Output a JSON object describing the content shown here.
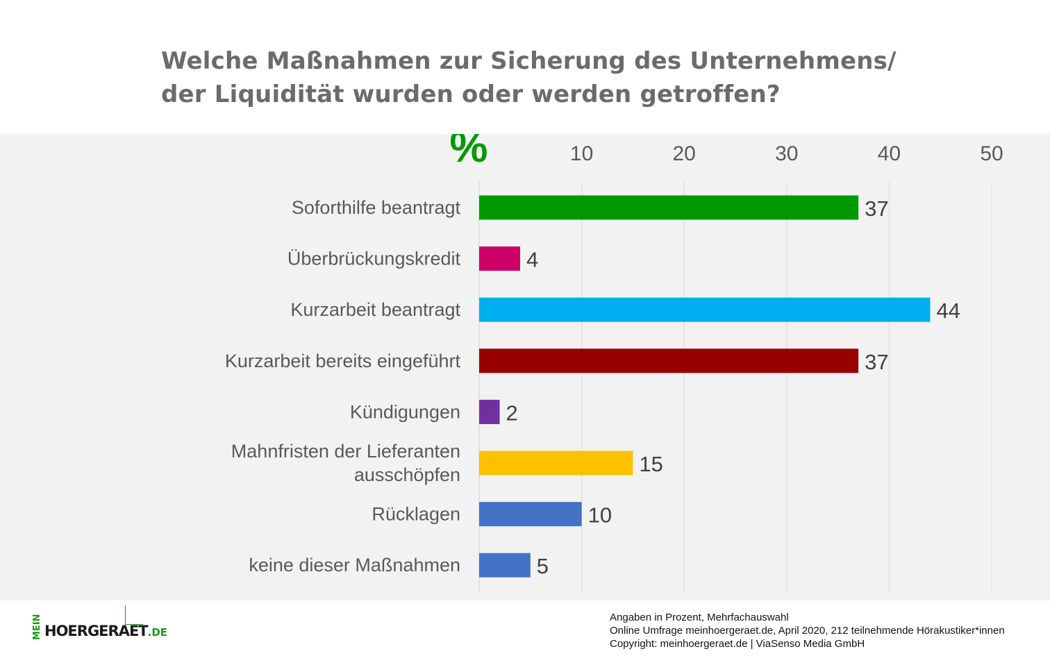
{
  "header": {
    "title_line1": "Welche Maßnahmen zur Sicherung des Unternehmens/",
    "title_line2": "der Liquidität wurden oder werden getroffen?"
  },
  "chart_data": {
    "type": "bar",
    "orientation": "horizontal",
    "unit_label": "%",
    "categories": [
      [
        "Soforthilfe beantragt"
      ],
      [
        "Überbrückungskredit"
      ],
      [
        "Kurzarbeit beantragt"
      ],
      [
        "Kurzarbeit bereits eingeführt"
      ],
      [
        "Kündigungen"
      ],
      [
        "Mahnfristen der Lieferanten",
        "ausschöpfen"
      ],
      [
        "Rücklagen"
      ],
      [
        "keine dieser Maßnahmen"
      ]
    ],
    "values": [
      37,
      4,
      44,
      37,
      2,
      15,
      10,
      5
    ],
    "data_labels": [
      "37",
      "4",
      "44",
      "37",
      "2",
      "15",
      "10",
      "5"
    ],
    "colors": [
      "#009900",
      "#cc0066",
      "#00b0f0",
      "#990000",
      "#7030a0",
      "#ffc000",
      "#4472c4",
      "#4472c4"
    ],
    "xlim": [
      0,
      50
    ],
    "ticks": [
      10,
      20,
      30,
      40,
      50
    ],
    "tick_labels": [
      "10",
      "20",
      "30",
      "40",
      "50"
    ],
    "axis_position": "top",
    "grid": true,
    "unit_color": "#009900"
  },
  "footer": {
    "note1": "Angaben in Prozent,  Mehrfachauswahl",
    "note2": "Online Umfrage meinhoergeraet.de, April 2020, 212 teilnehmende  Hörakustiker*innen",
    "note3": "Copyright: meinhoergeraet.de | ViaSenso Media GmbH"
  },
  "logo": {
    "prefix": "MEIN",
    "name": "HOERGERAET",
    "tld": ".DE"
  }
}
